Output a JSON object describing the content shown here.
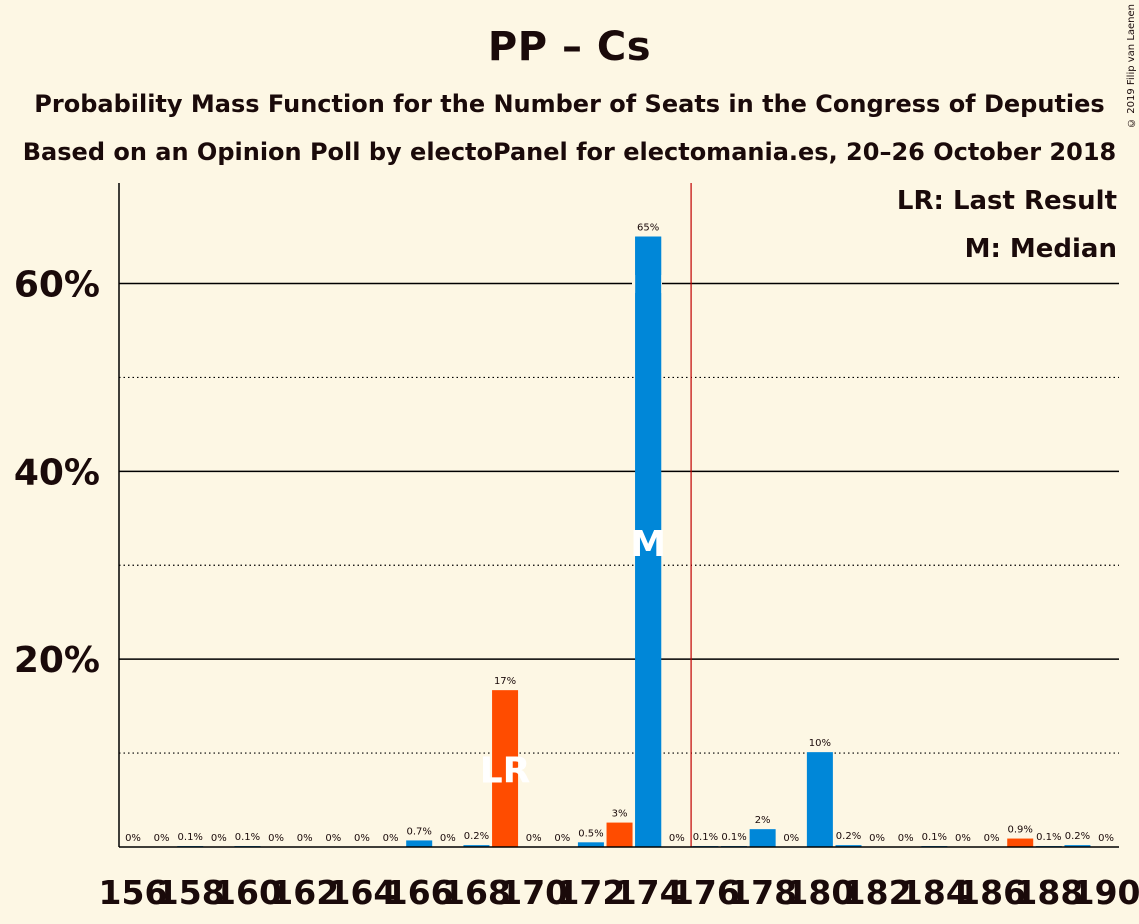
{
  "title": "PP – Cs",
  "subtitle1": "Probability Mass Function for the Number of Seats in the Congress of Deputies",
  "subtitle2": "Based on an Opinion Poll by electoPanel for electomania.es, 20–26 October 2018",
  "copyright": "© 2019 Filip van Laenen",
  "legend": {
    "lr": "LR: Last Result",
    "median": "M: Median"
  },
  "colors": {
    "blue": "#0087d8",
    "orange": "#ff4c00",
    "background": "#fdf7e4",
    "lastResultLine": "#c00000"
  },
  "chart_data": {
    "type": "bar",
    "x": [
      156,
      157,
      158,
      159,
      160,
      161,
      162,
      163,
      164,
      165,
      166,
      167,
      168,
      169,
      170,
      171,
      172,
      173,
      174,
      175,
      176,
      177,
      178,
      179,
      180,
      181,
      182,
      183,
      184,
      185,
      186,
      187,
      188,
      189,
      190
    ],
    "values": [
      0,
      0,
      0.1,
      0,
      0.1,
      0,
      0,
      0,
      0,
      0,
      0.7,
      0,
      0.2,
      16.7,
      0,
      0,
      0.5,
      2.6,
      65,
      0,
      0.1,
      0.1,
      1.9,
      0,
      10.1,
      0.2,
      0,
      0,
      0.1,
      0,
      0,
      0.9,
      0.1,
      0.2,
      0
    ],
    "labels": [
      "0%",
      "0%",
      "0.1%",
      "0%",
      "0.1%",
      "0%",
      "0%",
      "0%",
      "0%",
      "0%",
      "0.7%",
      "0%",
      "0.2%",
      "17%",
      "0%",
      "0%",
      "0.5%",
      "3%",
      "65%",
      "0%",
      "0.1%",
      "0.1%",
      "2%",
      "0%",
      "10%",
      "0.2%",
      "0%",
      "0%",
      "0.1%",
      "0%",
      "0%",
      "0.9%",
      "0.1%",
      "0.2%",
      "0%"
    ],
    "colors": [
      "blue",
      "blue",
      "blue",
      "blue",
      "blue",
      "blue",
      "blue",
      "blue",
      "blue",
      "blue",
      "blue",
      "blue",
      "blue",
      "orange",
      "blue",
      "blue",
      "blue",
      "orange",
      "blue",
      "blue",
      "blue",
      "blue",
      "blue",
      "blue",
      "blue",
      "blue",
      "blue",
      "blue",
      "blue",
      "blue",
      "blue",
      "orange",
      "blue",
      "blue",
      "blue"
    ],
    "xticks": [
      156,
      158,
      160,
      162,
      164,
      166,
      168,
      170,
      172,
      174,
      176,
      178,
      180,
      182,
      184,
      186,
      188,
      190
    ],
    "yticks": [
      20,
      40,
      60
    ],
    "ytick_labels": [
      "20%",
      "40%",
      "60%"
    ],
    "minor_gridlines": [
      10,
      30,
      50
    ],
    "ylim": [
      0,
      70.5
    ],
    "last_result": 169,
    "median": 174,
    "majority_line": 175.5,
    "lr_label": "LR",
    "m_label": "M"
  }
}
